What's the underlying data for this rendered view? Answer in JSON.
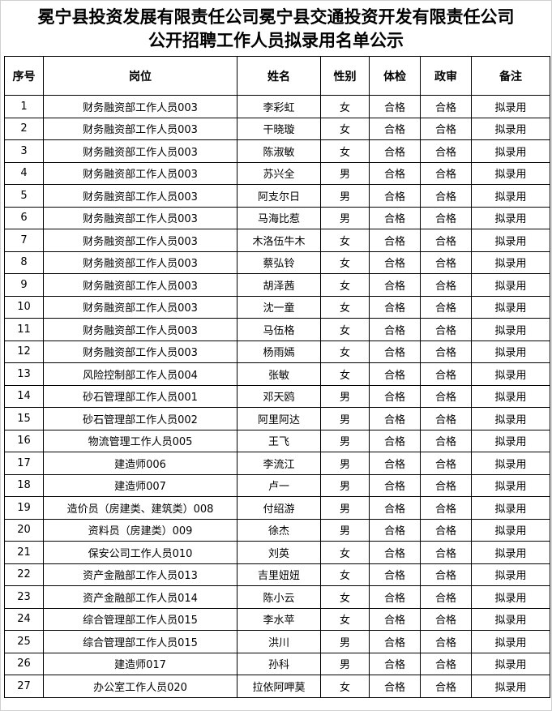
{
  "title_line1": "冕宁县投资发展有限责任公司冕宁县交通投资开发有限责任公司",
  "title_line2": "公开招聘工作人员拟录用名单公示",
  "headers": [
    "序号",
    "岗位",
    "姓名",
    "性别",
    "体检",
    "政审",
    "备注"
  ],
  "rows": [
    [
      "1",
      "财务融资部工作人员003",
      "李彩虹",
      "女",
      "合格",
      "合格",
      "拟录用"
    ],
    [
      "2",
      "财务融资部工作人员003",
      "干晓璇",
      "女",
      "合格",
      "合格",
      "拟录用"
    ],
    [
      "3",
      "财务融资部工作人员003",
      "陈淑敏",
      "女",
      "合格",
      "合格",
      "拟录用"
    ],
    [
      "4",
      "财务融资部工作人员003",
      "苏兴全",
      "男",
      "合格",
      "合格",
      "拟录用"
    ],
    [
      "5",
      "财务融资部工作人员003",
      "阿支尔日",
      "男",
      "合格",
      "合格",
      "拟录用"
    ],
    [
      "6",
      "财务融资部工作人员003",
      "马海比惹",
      "男",
      "合格",
      "合格",
      "拟录用"
    ],
    [
      "7",
      "财务融资部工作人员003",
      "木洛伍牛木",
      "女",
      "合格",
      "合格",
      "拟录用"
    ],
    [
      "8",
      "财务融资部工作人员003",
      "蔡弘铃",
      "女",
      "合格",
      "合格",
      "拟录用"
    ],
    [
      "9",
      "财务融资部工作人员003",
      "胡泽茜",
      "女",
      "合格",
      "合格",
      "拟录用"
    ],
    [
      "10",
      "财务融资部工作人员003",
      "沈一童",
      "女",
      "合格",
      "合格",
      "拟录用"
    ],
    [
      "11",
      "财务融资部工作人员003",
      "马伍格",
      "女",
      "合格",
      "合格",
      "拟录用"
    ],
    [
      "12",
      "财务融资部工作人员003",
      "杨雨嫣",
      "女",
      "合格",
      "合格",
      "拟录用"
    ],
    [
      "13",
      "风险控制部工作人员004",
      "张敏",
      "女",
      "合格",
      "合格",
      "拟录用"
    ],
    [
      "14",
      "砂石管理部工作人员001",
      "邓天鸥",
      "男",
      "合格",
      "合格",
      "拟录用"
    ],
    [
      "15",
      "砂石管理部工作人员002",
      "阿里阿达",
      "男",
      "合格",
      "合格",
      "拟录用"
    ],
    [
      "16",
      "物流管理工作人员005",
      "王飞",
      "男",
      "合格",
      "合格",
      "拟录用"
    ],
    [
      "17",
      "建造师006",
      "李流江",
      "男",
      "合格",
      "合格",
      "拟录用"
    ],
    [
      "18",
      "建造师007",
      "卢一",
      "男",
      "合格",
      "合格",
      "拟录用"
    ],
    [
      "19",
      "造价员（房建类、建筑类）008",
      "付绍游",
      "男",
      "合格",
      "合格",
      "拟录用"
    ],
    [
      "20",
      "资料员（房建类）009",
      "徐杰",
      "男",
      "合格",
      "合格",
      "拟录用"
    ],
    [
      "21",
      "保安公司工作人员010",
      "刘英",
      "女",
      "合格",
      "合格",
      "拟录用"
    ],
    [
      "22",
      "资产金融部工作人员013",
      "吉里妞妞",
      "女",
      "合格",
      "合格",
      "拟录用"
    ],
    [
      "23",
      "资产金融部工作人员014",
      "陈小云",
      "女",
      "合格",
      "合格",
      "拟录用"
    ],
    [
      "24",
      "综合管理部工作人员015",
      "李水苹",
      "女",
      "合格",
      "合格",
      "拟录用"
    ],
    [
      "25",
      "综合管理部工作人员015",
      "洪川",
      "男",
      "合格",
      "合格",
      "拟录用"
    ],
    [
      "26",
      "建造师017",
      "孙科",
      "男",
      "合格",
      "合格",
      "拟录用"
    ],
    [
      "27",
      "办公室工作人员020",
      "拉依阿呷莫",
      "女",
      "合格",
      "合格",
      "拟录用"
    ]
  ]
}
